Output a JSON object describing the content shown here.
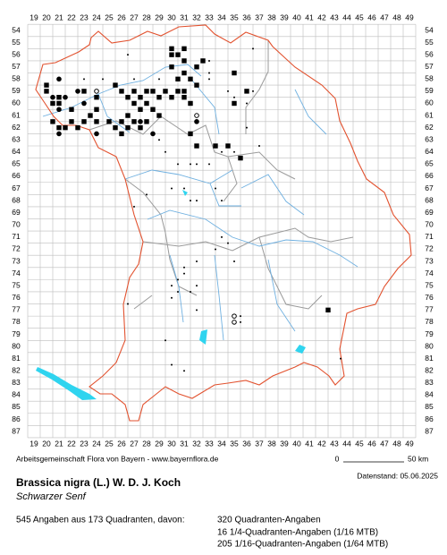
{
  "map": {
    "columns": [
      19,
      20,
      21,
      22,
      23,
      24,
      25,
      26,
      27,
      28,
      29,
      30,
      31,
      32,
      33,
      34,
      35,
      36,
      37,
      38,
      39,
      40,
      41,
      42,
      43,
      44,
      45,
      46,
      47,
      48,
      49
    ],
    "rows": [
      54,
      55,
      56,
      57,
      58,
      59,
      60,
      61,
      62,
      63,
      64,
      65,
      66,
      67,
      68,
      69,
      70,
      71,
      72,
      73,
      74,
      75,
      76,
      77,
      78,
      79,
      80,
      81,
      82,
      83,
      84,
      85,
      86,
      87
    ],
    "records": {
      "square": [
        [
          20,
          58.5
        ],
        [
          20,
          59
        ],
        [
          21,
          59.5
        ],
        [
          21,
          60
        ],
        [
          20.5,
          61.5
        ],
        [
          21,
          62
        ],
        [
          21.5,
          62
        ],
        [
          22,
          61.5
        ],
        [
          22.5,
          62
        ],
        [
          23,
          61.5
        ],
        [
          23.5,
          61
        ],
        [
          24,
          61.5
        ],
        [
          24,
          60.5
        ],
        [
          25,
          61.5
        ],
        [
          25.5,
          62
        ],
        [
          26,
          62.5
        ],
        [
          26,
          61.5
        ],
        [
          26.5,
          62
        ],
        [
          27,
          61.5
        ],
        [
          27.5,
          62
        ],
        [
          26,
          59
        ],
        [
          26.5,
          59.5
        ],
        [
          27,
          59
        ],
        [
          27.5,
          59.5
        ],
        [
          28,
          59
        ],
        [
          28.5,
          59
        ],
        [
          29,
          59.5
        ],
        [
          29.5,
          59
        ],
        [
          30,
          59.5
        ],
        [
          30.5,
          59
        ],
        [
          31,
          59.5
        ],
        [
          28,
          60
        ],
        [
          28.5,
          60.5
        ],
        [
          29,
          61
        ],
        [
          28,
          61.5
        ],
        [
          27,
          60
        ],
        [
          30,
          56
        ],
        [
          30.5,
          56
        ],
        [
          31,
          56.5
        ],
        [
          30,
          57
        ],
        [
          31,
          57.5
        ],
        [
          32,
          57
        ],
        [
          31.5,
          58
        ],
        [
          30.5,
          58
        ],
        [
          31,
          59
        ],
        [
          31.5,
          60
        ],
        [
          32,
          58.5
        ],
        [
          30,
          55.5
        ],
        [
          31,
          55.5
        ],
        [
          23,
          59
        ],
        [
          24,
          59.5
        ],
        [
          22,
          60.5
        ],
        [
          20.5,
          60
        ],
        [
          42.5,
          77
        ],
        [
          33.5,
          63.5
        ],
        [
          34.5,
          63.5
        ],
        [
          35.5,
          64.5
        ],
        [
          31.5,
          62.5
        ],
        [
          32,
          63.5
        ],
        [
          35,
          57.5
        ],
        [
          35,
          60
        ],
        [
          36,
          59
        ],
        [
          25.5,
          58.5
        ],
        [
          32.5,
          56.5
        ],
        [
          27.5,
          60.5
        ],
        [
          26.5,
          61
        ]
      ],
      "circle": [
        [
          21,
          58
        ],
        [
          20.5,
          59.5
        ],
        [
          21.5,
          59.5
        ],
        [
          21,
          60.5
        ],
        [
          21,
          62.5
        ],
        [
          24,
          62.5
        ],
        [
          27.5,
          61.5
        ],
        [
          28.5,
          62.5
        ],
        [
          32,
          61.5
        ],
        [
          23,
          60
        ],
        [
          22.5,
          59
        ]
      ],
      "open": [
        [
          35,
          77.5
        ],
        [
          35,
          78
        ],
        [
          32,
          61
        ],
        [
          24,
          59
        ]
      ],
      "dot": [
        [
          26.5,
          56
        ],
        [
          27,
          58
        ],
        [
          23,
          58
        ],
        [
          24.5,
          58
        ],
        [
          29,
          58
        ],
        [
          33,
          56.5
        ],
        [
          33,
          57.5
        ],
        [
          33,
          58
        ],
        [
          34.5,
          59
        ],
        [
          35,
          59.5
        ],
        [
          36.5,
          59
        ],
        [
          36,
          60
        ],
        [
          36,
          62
        ],
        [
          37,
          63.5
        ],
        [
          35,
          64
        ],
        [
          34,
          64
        ],
        [
          33,
          65
        ],
        [
          32,
          65
        ],
        [
          31.5,
          65
        ],
        [
          30.5,
          65
        ],
        [
          29,
          63
        ],
        [
          29.5,
          64
        ],
        [
          30,
          67
        ],
        [
          31,
          67
        ],
        [
          31.5,
          68
        ],
        [
          32,
          68
        ],
        [
          33.5,
          67
        ],
        [
          28,
          67.5
        ],
        [
          34,
          71
        ],
        [
          34.5,
          71.5
        ],
        [
          33.5,
          72
        ],
        [
          35,
          73
        ],
        [
          31,
          73.5
        ],
        [
          31,
          74
        ],
        [
          30.5,
          74.5
        ],
        [
          30,
          75
        ],
        [
          30.5,
          75.5
        ],
        [
          31.5,
          75.5
        ],
        [
          32,
          75
        ],
        [
          30,
          76
        ],
        [
          26.5,
          76.5
        ],
        [
          32,
          77
        ],
        [
          29.5,
          79.5
        ],
        [
          35.5,
          77.5
        ],
        [
          35.5,
          78
        ],
        [
          36.5,
          55.5
        ],
        [
          43.5,
          81
        ],
        [
          27,
          68.5
        ],
        [
          30,
          81.5
        ],
        [
          31,
          82
        ],
        [
          34,
          68
        ],
        [
          32,
          73
        ]
      ]
    },
    "credit": "Arbeitsgemeinschaft Flora von Bayern - www.bayernflora.de",
    "scale_start": "0",
    "scale_end": "50 km",
    "date": "Datenstand: 05.06.2025",
    "title": "Brassica nigra (L.) W. D. J. Koch",
    "subtitle": "Schwarzer Senf",
    "summary": "545 Angaben aus 173 Quadranten, davon:",
    "breakdown": [
      "320 Quadranten-Angaben",
      "16 1/4-Quadranten-Angaben (1/16 MTB)",
      "205 1/16-Quadranten-Angaben (1/64 MTB)"
    ]
  }
}
